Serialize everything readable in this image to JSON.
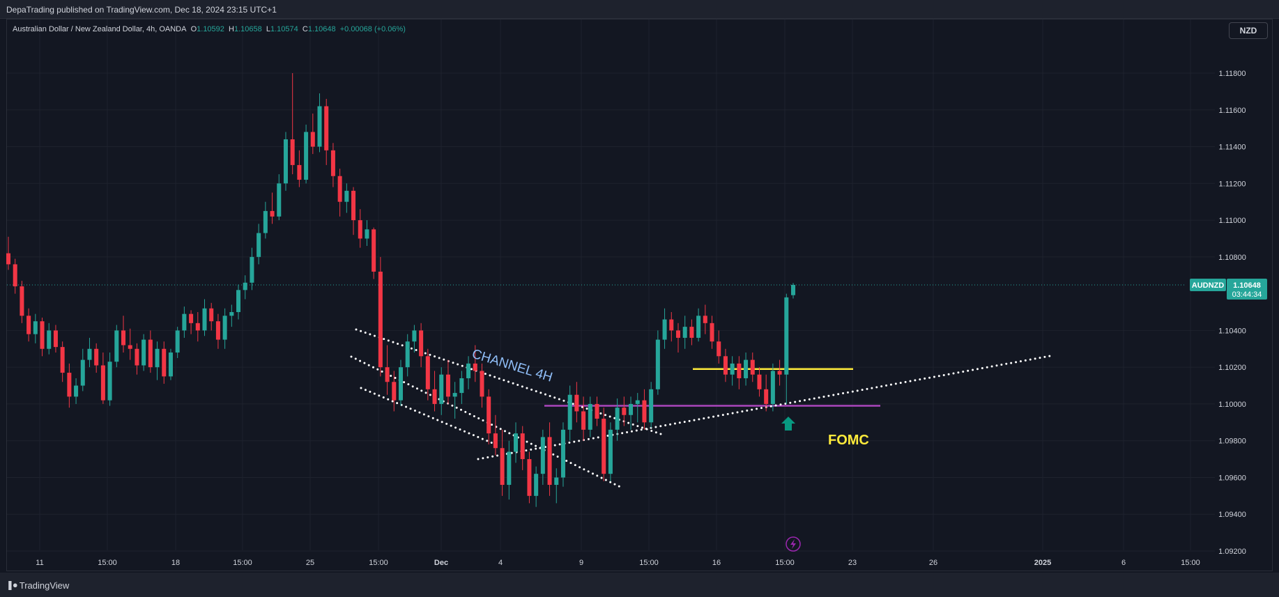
{
  "header": {
    "publish_info": "DepaTrading published on TradingView.com, Dec 18, 2024 23:15 UTC+1"
  },
  "legend": {
    "symbol": "Australian Dollar / New Zealand Dollar, 4h, OANDA",
    "open_label": "O",
    "open": "1.10592",
    "high_label": "H",
    "high": "1.10658",
    "low_label": "L",
    "low": "1.10574",
    "close_label": "C",
    "close": "1.10648",
    "change": "+0.00068 (+0.06%)"
  },
  "currency_button": "NZD",
  "footer": {
    "brand": "TradingView",
    "logo_icon": "tradingview-logo-icon"
  },
  "colors": {
    "background": "#131722",
    "up": "#26a69a",
    "down": "#f23645",
    "support_line": "#ab47bc",
    "resistance_line": "#ffeb3b",
    "dotted_lines": "#ffffff",
    "channel_label": "#90bff9",
    "fomc_label": "#ffeb3b",
    "arrow": "#089981",
    "event_icon": "#9c27b0"
  },
  "chart_data": {
    "type": "candlestick",
    "symbol": "AUDNZD",
    "timeframe": "4h",
    "grid": true,
    "y_ticks": [
      "1.11800",
      "1.11600",
      "1.11400",
      "1.11200",
      "1.11000",
      "1.10800",
      "1.10400",
      "1.10200",
      "1.10000",
      "1.09800",
      "1.09600",
      "1.09400",
      "1.09200"
    ],
    "ylim": [
      1.092,
      1.1196
    ],
    "x_ticks": [
      "11",
      "15:00",
      "18",
      "15:00",
      "25",
      "15:00",
      "Dec",
      "4",
      "9",
      "15:00",
      "16",
      "15:00",
      "23",
      "26",
      "2025",
      "6",
      "15:00"
    ],
    "last_price": {
      "label": "AUDNZD",
      "value": "1.10648",
      "countdown": "03:44:34"
    },
    "candles": [
      {
        "o": 1.1082,
        "h": 1.1091,
        "l": 1.1073,
        "c": 1.1076
      },
      {
        "o": 1.1076,
        "h": 1.1079,
        "l": 1.106,
        "c": 1.1064
      },
      {
        "o": 1.1064,
        "h": 1.1067,
        "l": 1.1044,
        "c": 1.1048
      },
      {
        "o": 1.1048,
        "h": 1.1052,
        "l": 1.1034,
        "c": 1.1038
      },
      {
        "o": 1.1038,
        "h": 1.1049,
        "l": 1.1033,
        "c": 1.1045
      },
      {
        "o": 1.1045,
        "h": 1.1047,
        "l": 1.1026,
        "c": 1.103
      },
      {
        "o": 1.103,
        "h": 1.1044,
        "l": 1.1027,
        "c": 1.104
      },
      {
        "o": 1.104,
        "h": 1.1043,
        "l": 1.1028,
        "c": 1.1031
      },
      {
        "o": 1.1031,
        "h": 1.1034,
        "l": 1.1012,
        "c": 1.1017
      },
      {
        "o": 1.1017,
        "h": 1.1022,
        "l": 1.0998,
        "c": 1.1004
      },
      {
        "o": 1.1004,
        "h": 1.1014,
        "l": 1.1,
        "c": 1.101
      },
      {
        "o": 1.101,
        "h": 1.103,
        "l": 1.1007,
        "c": 1.1024
      },
      {
        "o": 1.1024,
        "h": 1.1036,
        "l": 1.102,
        "c": 1.103
      },
      {
        "o": 1.103,
        "h": 1.1033,
        "l": 1.1017,
        "c": 1.1021
      },
      {
        "o": 1.1021,
        "h": 1.1028,
        "l": 1.1,
        "c": 1.1002
      },
      {
        "o": 1.1002,
        "h": 1.1028,
        "l": 1.0999,
        "c": 1.1023
      },
      {
        "o": 1.1023,
        "h": 1.1043,
        "l": 1.102,
        "c": 1.104
      },
      {
        "o": 1.104,
        "h": 1.1048,
        "l": 1.1028,
        "c": 1.1032
      },
      {
        "o": 1.1032,
        "h": 1.1041,
        "l": 1.1024,
        "c": 1.103
      },
      {
        "o": 1.103,
        "h": 1.1033,
        "l": 1.1016,
        "c": 1.1021
      },
      {
        "o": 1.1021,
        "h": 1.1038,
        "l": 1.1018,
        "c": 1.1035
      },
      {
        "o": 1.1035,
        "h": 1.104,
        "l": 1.1017,
        "c": 1.102
      },
      {
        "o": 1.102,
        "h": 1.1034,
        "l": 1.1013,
        "c": 1.103
      },
      {
        "o": 1.103,
        "h": 1.1034,
        "l": 1.1011,
        "c": 1.1015
      },
      {
        "o": 1.1015,
        "h": 1.103,
        "l": 1.1013,
        "c": 1.1028
      },
      {
        "o": 1.1028,
        "h": 1.1042,
        "l": 1.1025,
        "c": 1.104
      },
      {
        "o": 1.104,
        "h": 1.1053,
        "l": 1.1036,
        "c": 1.1049
      },
      {
        "o": 1.1049,
        "h": 1.1051,
        "l": 1.1038,
        "c": 1.1044
      },
      {
        "o": 1.1044,
        "h": 1.105,
        "l": 1.1034,
        "c": 1.104
      },
      {
        "o": 1.104,
        "h": 1.1057,
        "l": 1.1037,
        "c": 1.1052
      },
      {
        "o": 1.1052,
        "h": 1.1055,
        "l": 1.104,
        "c": 1.1045
      },
      {
        "o": 1.1045,
        "h": 1.1049,
        "l": 1.103,
        "c": 1.1035
      },
      {
        "o": 1.1035,
        "h": 1.1052,
        "l": 1.103,
        "c": 1.1048
      },
      {
        "o": 1.1048,
        "h": 1.1054,
        "l": 1.1042,
        "c": 1.105
      },
      {
        "o": 1.105,
        "h": 1.1065,
        "l": 1.1046,
        "c": 1.1062
      },
      {
        "o": 1.1062,
        "h": 1.107,
        "l": 1.1057,
        "c": 1.1066
      },
      {
        "o": 1.1066,
        "h": 1.1085,
        "l": 1.1062,
        "c": 1.108
      },
      {
        "o": 1.108,
        "h": 1.1098,
        "l": 1.1076,
        "c": 1.1093
      },
      {
        "o": 1.1093,
        "h": 1.111,
        "l": 1.109,
        "c": 1.1105
      },
      {
        "o": 1.1105,
        "h": 1.1115,
        "l": 1.1098,
        "c": 1.1102
      },
      {
        "o": 1.1102,
        "h": 1.1125,
        "l": 1.11,
        "c": 1.112
      },
      {
        "o": 1.112,
        "h": 1.1148,
        "l": 1.1116,
        "c": 1.1144
      },
      {
        "o": 1.1144,
        "h": 1.118,
        "l": 1.1125,
        "c": 1.113
      },
      {
        "o": 1.113,
        "h": 1.1138,
        "l": 1.1118,
        "c": 1.1122
      },
      {
        "o": 1.1122,
        "h": 1.1152,
        "l": 1.112,
        "c": 1.1148
      },
      {
        "o": 1.1148,
        "h": 1.1158,
        "l": 1.1136,
        "c": 1.114
      },
      {
        "o": 1.114,
        "h": 1.1169,
        "l": 1.1137,
        "c": 1.1162
      },
      {
        "o": 1.1162,
        "h": 1.1166,
        "l": 1.113,
        "c": 1.1138
      },
      {
        "o": 1.1138,
        "h": 1.1142,
        "l": 1.1118,
        "c": 1.1124
      },
      {
        "o": 1.1124,
        "h": 1.1128,
        "l": 1.1102,
        "c": 1.111
      },
      {
        "o": 1.111,
        "h": 1.112,
        "l": 1.1104,
        "c": 1.1116
      },
      {
        "o": 1.1116,
        "h": 1.1118,
        "l": 1.1092,
        "c": 1.11
      },
      {
        "o": 1.11,
        "h": 1.1106,
        "l": 1.1085,
        "c": 1.109
      },
      {
        "o": 1.109,
        "h": 1.11,
        "l": 1.1086,
        "c": 1.1095
      },
      {
        "o": 1.1095,
        "h": 1.1096,
        "l": 1.1068,
        "c": 1.1072
      },
      {
        "o": 1.1072,
        "h": 1.108,
        "l": 1.1015,
        "c": 1.102
      },
      {
        "o": 1.102,
        "h": 1.1032,
        "l": 1.1005,
        "c": 1.1012
      },
      {
        "o": 1.1012,
        "h": 1.1018,
        "l": 1.0996,
        "c": 1.1002
      },
      {
        "o": 1.1002,
        "h": 1.1024,
        "l": 1.0999,
        "c": 1.102
      },
      {
        "o": 1.102,
        "h": 1.1038,
        "l": 1.1015,
        "c": 1.1034
      },
      {
        "o": 1.1034,
        "h": 1.1043,
        "l": 1.1028,
        "c": 1.104
      },
      {
        "o": 1.104,
        "h": 1.1044,
        "l": 1.102,
        "c": 1.1026
      },
      {
        "o": 1.1026,
        "h": 1.103,
        "l": 1.1002,
        "c": 1.1008
      },
      {
        "o": 1.1008,
        "h": 1.1018,
        "l": 1.0996,
        "c": 1.1
      },
      {
        "o": 1.1,
        "h": 1.102,
        "l": 1.0994,
        "c": 1.1016
      },
      {
        "o": 1.1016,
        "h": 1.1024,
        "l": 1.1,
        "c": 1.1004
      },
      {
        "o": 1.1004,
        "h": 1.1012,
        "l": 1.0992,
        "c": 1.1006
      },
      {
        "o": 1.1006,
        "h": 1.1018,
        "l": 1.1,
        "c": 1.1014
      },
      {
        "o": 1.1014,
        "h": 1.1026,
        "l": 1.1008,
        "c": 1.1022
      },
      {
        "o": 1.1022,
        "h": 1.1032,
        "l": 1.1012,
        "c": 1.1018
      },
      {
        "o": 1.1018,
        "h": 1.1022,
        "l": 1.0998,
        "c": 1.1004
      },
      {
        "o": 1.1004,
        "h": 1.1008,
        "l": 1.0978,
        "c": 1.0984
      },
      {
        "o": 1.0984,
        "h": 1.0994,
        "l": 1.0972,
        "c": 1.0976
      },
      {
        "o": 1.0976,
        "h": 1.0986,
        "l": 1.095,
        "c": 1.0956
      },
      {
        "o": 1.0956,
        "h": 1.098,
        "l": 1.0948,
        "c": 1.0974
      },
      {
        "o": 1.0974,
        "h": 1.099,
        "l": 1.0968,
        "c": 1.0984
      },
      {
        "o": 1.0984,
        "h": 1.0988,
        "l": 1.0964,
        "c": 1.097
      },
      {
        "o": 1.097,
        "h": 1.0974,
        "l": 1.0946,
        "c": 1.095
      },
      {
        "o": 1.095,
        "h": 1.0966,
        "l": 1.0944,
        "c": 1.0962
      },
      {
        "o": 1.0962,
        "h": 1.0986,
        "l": 1.0956,
        "c": 1.0982
      },
      {
        "o": 1.0982,
        "h": 1.099,
        "l": 1.095,
        "c": 1.0956
      },
      {
        "o": 1.0956,
        "h": 1.0965,
        "l": 1.0946,
        "c": 1.096
      },
      {
        "o": 1.096,
        "h": 1.099,
        "l": 1.0955,
        "c": 1.0986
      },
      {
        "o": 1.0986,
        "h": 1.101,
        "l": 1.098,
        "c": 1.1005
      },
      {
        "o": 1.1005,
        "h": 1.1012,
        "l": 1.099,
        "c": 1.0996
      },
      {
        "o": 1.0996,
        "h": 1.1004,
        "l": 1.098,
        "c": 1.0986
      },
      {
        "o": 1.0986,
        "h": 1.1004,
        "l": 1.0982,
        "c": 1.1
      },
      {
        "o": 1.1,
        "h": 1.1004,
        "l": 1.0988,
        "c": 1.0992
      },
      {
        "o": 1.0992,
        "h": 1.0998,
        "l": 1.0958,
        "c": 1.0962
      },
      {
        "o": 1.0962,
        "h": 1.099,
        "l": 1.0958,
        "c": 1.0986
      },
      {
        "o": 1.0986,
        "h": 1.1003,
        "l": 1.098,
        "c": 1.0998
      },
      {
        "o": 1.0998,
        "h": 1.1004,
        "l": 1.0988,
        "c": 1.0994
      },
      {
        "o": 1.0994,
        "h": 1.1004,
        "l": 1.0986,
        "c": 1.1
      },
      {
        "o": 1.1,
        "h": 1.1006,
        "l": 1.099,
        "c": 1.1002
      },
      {
        "o": 1.1002,
        "h": 1.1008,
        "l": 1.0986,
        "c": 1.099
      },
      {
        "o": 1.099,
        "h": 1.1012,
        "l": 1.0987,
        "c": 1.1008
      },
      {
        "o": 1.1008,
        "h": 1.104,
        "l": 1.1005,
        "c": 1.1035
      },
      {
        "o": 1.1035,
        "h": 1.1052,
        "l": 1.103,
        "c": 1.1046
      },
      {
        "o": 1.1046,
        "h": 1.105,
        "l": 1.1034,
        "c": 1.104
      },
      {
        "o": 1.104,
        "h": 1.1044,
        "l": 1.1028,
        "c": 1.1036
      },
      {
        "o": 1.1036,
        "h": 1.1048,
        "l": 1.103,
        "c": 1.1042
      },
      {
        "o": 1.1042,
        "h": 1.1046,
        "l": 1.1032,
        "c": 1.1036
      },
      {
        "o": 1.1036,
        "h": 1.1052,
        "l": 1.1034,
        "c": 1.1048
      },
      {
        "o": 1.1048,
        "h": 1.1054,
        "l": 1.1038,
        "c": 1.1044
      },
      {
        "o": 1.1044,
        "h": 1.1048,
        "l": 1.103,
        "c": 1.1034
      },
      {
        "o": 1.1034,
        "h": 1.104,
        "l": 1.1022,
        "c": 1.1026
      },
      {
        "o": 1.1026,
        "h": 1.103,
        "l": 1.1012,
        "c": 1.1016
      },
      {
        "o": 1.1016,
        "h": 1.1026,
        "l": 1.101,
        "c": 1.1022
      },
      {
        "o": 1.1022,
        "h": 1.1026,
        "l": 1.1008,
        "c": 1.1014
      },
      {
        "o": 1.1014,
        "h": 1.1028,
        "l": 1.101,
        "c": 1.1024
      },
      {
        "o": 1.1024,
        "h": 1.1028,
        "l": 1.1012,
        "c": 1.1016
      },
      {
        "o": 1.1016,
        "h": 1.102,
        "l": 1.1004,
        "c": 1.1008
      },
      {
        "o": 1.1008,
        "h": 1.1016,
        "l": 1.0996,
        "c": 1.1
      },
      {
        "o": 1.1,
        "h": 1.1022,
        "l": 1.0996,
        "c": 1.1018
      },
      {
        "o": 1.1018,
        "h": 1.1024,
        "l": 1.101,
        "c": 1.1016
      },
      {
        "o": 1.1016,
        "h": 1.106,
        "l": 1.1,
        "c": 1.1058
      },
      {
        "o": 1.10592,
        "h": 1.10658,
        "l": 1.10574,
        "c": 1.10648
      }
    ],
    "annotations": {
      "channel_label": "CHANNEL 4H",
      "event_label": "FOMC",
      "support_level": 1.0999,
      "resistance_level": 1.1019
    }
  }
}
